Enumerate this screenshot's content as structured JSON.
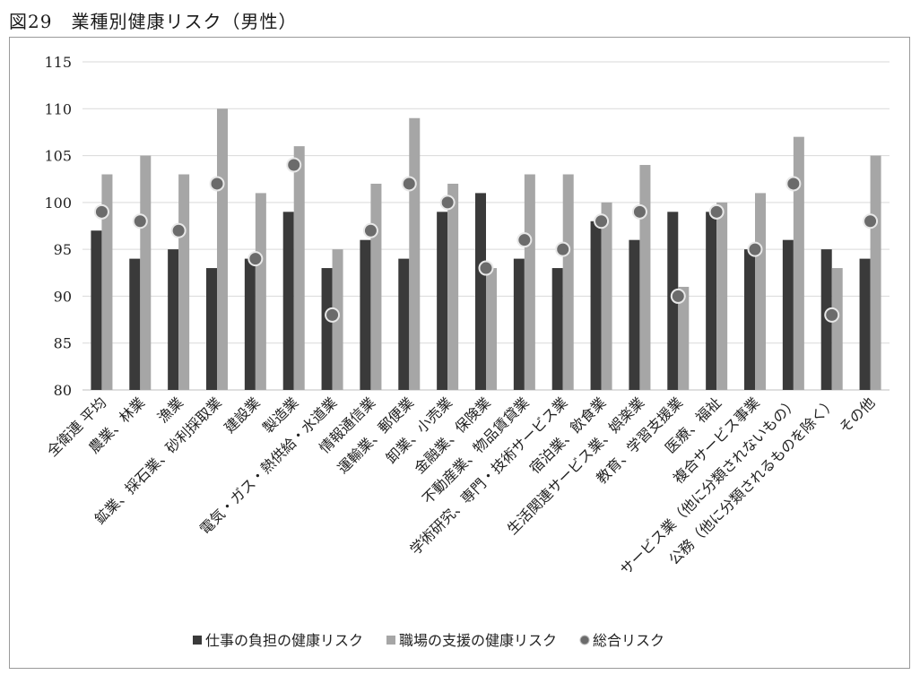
{
  "figure_title": "図29　業種別健康リスク（男性）",
  "colors": {
    "work": "#3a3a3a",
    "support": "#a6a6a6",
    "total_fill": "#6b6b6b",
    "total_stroke": "#e8e8e8",
    "grid": "#d9d9d9",
    "axis": "#bfbfbf"
  },
  "chart_data": {
    "type": "bar",
    "title": "",
    "xlabel": "",
    "ylabel": "",
    "ylim": [
      80,
      115
    ],
    "yticks": [
      80,
      85,
      90,
      95,
      100,
      105,
      110,
      115
    ],
    "grid": true,
    "legend_position": "bottom",
    "categories": [
      "全衛連 平均",
      "農業、林業",
      "漁業",
      "鉱業、採石業、砂利採取業",
      "建設業",
      "製造業",
      "電気・ガス・熱供給・水道業",
      "情報通信業",
      "運輸業、郵便業",
      "卸業、小売業",
      "金融業、保険業",
      "不動産業、物品賃貸業",
      "学術研究、専門・技術サービス業",
      "宿泊業、飲食業",
      "生活関連サービス業、娯楽業",
      "教育、学習支援業",
      "医療、福祉",
      "複合サービス事業",
      "サービス業（他に分類されないもの）",
      "公務（他に分類されるものを除く）",
      "その他"
    ],
    "series": [
      {
        "name": "仕事の負担の健康リスク",
        "kind": "bar",
        "values": [
          97,
          94,
          95,
          93,
          94,
          99,
          93,
          96,
          94,
          99,
          101,
          94,
          93,
          98,
          96,
          99,
          99,
          95,
          96,
          95,
          94
        ]
      },
      {
        "name": "職場の支援の健康リスク",
        "kind": "bar",
        "values": [
          103,
          105,
          103,
          110,
          101,
          106,
          95,
          102,
          109,
          102,
          93,
          103,
          103,
          100,
          104,
          91,
          100,
          101,
          107,
          93,
          105
        ]
      },
      {
        "name": "総合リスク",
        "kind": "marker",
        "values": [
          99,
          98,
          97,
          102,
          94,
          104,
          88,
          97,
          102,
          100,
          93,
          96,
          95,
          98,
          99,
          90,
          99,
          95,
          102,
          88,
          98
        ]
      }
    ]
  }
}
